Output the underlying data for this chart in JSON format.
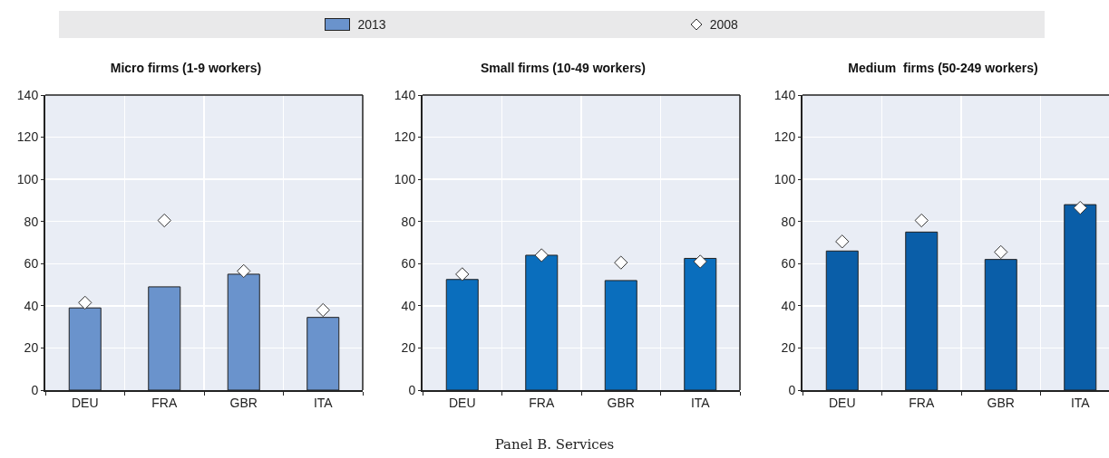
{
  "chart_data": [
    {
      "type": "bar",
      "title": "Micro firms (1-9 workers)",
      "categories": [
        "DEU",
        "FRA",
        "GBR",
        "ITA"
      ],
      "ylim": [
        0,
        140
      ],
      "yticks": [
        0,
        20,
        40,
        60,
        80,
        100,
        120,
        140
      ],
      "grid": true,
      "legend": "top",
      "series": [
        {
          "name": "2013",
          "color": "#6a93cc",
          "values": [
            39,
            49,
            55,
            34.5
          ]
        },
        {
          "name": "2008",
          "type": "scatter",
          "marker": "diamond",
          "color": "#ffffff",
          "values": [
            41.5,
            80.5,
            56.5,
            38
          ]
        }
      ]
    },
    {
      "type": "bar",
      "title": "Small firms (10-49 workers)",
      "categories": [
        "DEU",
        "FRA",
        "GBR",
        "ITA"
      ],
      "ylim": [
        0,
        140
      ],
      "yticks": [
        0,
        20,
        40,
        60,
        80,
        100,
        120,
        140
      ],
      "grid": true,
      "annotations": [
        "Panel B. Services"
      ],
      "series": [
        {
          "color": "#0a6ebd",
          "values": [
            52.5,
            64,
            52,
            62.5
          ]
        },
        {
          "type": "scatter",
          "marker": "diamond",
          "color": "#ffffff",
          "values": [
            55,
            64,
            60.5,
            61
          ]
        }
      ]
    },
    {
      "type": "bar",
      "title": "Medium  firms (50-249 workers)",
      "categories": [
        "DEU",
        "FRA",
        "GBR",
        "ITA"
      ],
      "ylim": [
        0,
        140
      ],
      "yticks": [
        0,
        20,
        40,
        60,
        80,
        100,
        120,
        140
      ],
      "grid": true,
      "series": [
        {
          "color": "#0a5ea8",
          "values": [
            66,
            75,
            62,
            88
          ]
        },
        {
          "type": "scatter",
          "marker": "diamond",
          "color": "#ffffff",
          "values": [
            70.5,
            80.5,
            65.5,
            86.5
          ]
        }
      ]
    }
  ]
}
